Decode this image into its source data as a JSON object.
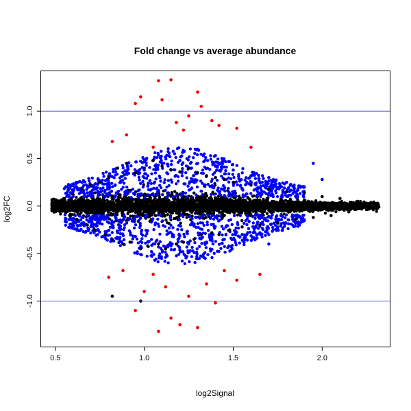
{
  "chart_data": {
    "type": "scatter",
    "title": "Fold change vs average abundance",
    "xlabel": "log2Signal",
    "ylabel": "log2FC",
    "xlim": [
      0.42,
      2.38
    ],
    "ylim": [
      -1.48,
      1.42
    ],
    "x_ticks": [
      0.5,
      1.0,
      1.5,
      2.0
    ],
    "x_tick_labels": [
      "0.5",
      "1.0",
      "1.5",
      "2.0"
    ],
    "y_ticks": [
      -1.0,
      -0.5,
      0.0,
      0.5,
      1.0
    ],
    "y_tick_labels": [
      "-1.0",
      "-0.5",
      "0.0",
      "0.5",
      "1.0"
    ],
    "reference_lines": [
      {
        "axis": "y",
        "value": 1.0,
        "color": "#4a4aff"
      },
      {
        "axis": "y",
        "value": -1.0,
        "color": "#4a4aff"
      }
    ],
    "series": [
      {
        "color": "#000000",
        "description": "dense band around log2FC = 0, spread narrowing toward high log2Signal",
        "points": [
          [
            0.5,
            0.02
          ],
          [
            0.52,
            -0.05
          ],
          [
            0.55,
            0.08
          ],
          [
            0.58,
            -0.1
          ],
          [
            0.6,
            0.12
          ],
          [
            0.62,
            -0.14
          ],
          [
            0.65,
            0.18
          ],
          [
            0.68,
            -0.2
          ],
          [
            0.7,
            0.22
          ],
          [
            0.72,
            -0.25
          ],
          [
            0.75,
            0.25
          ],
          [
            0.78,
            -0.3
          ],
          [
            0.8,
            0.3
          ],
          [
            0.82,
            -0.35
          ],
          [
            0.85,
            0.4
          ],
          [
            0.88,
            -0.4
          ],
          [
            0.9,
            0.45
          ],
          [
            0.92,
            -0.38
          ],
          [
            0.95,
            0.35
          ],
          [
            0.98,
            -0.45
          ],
          [
            1.0,
            0.4
          ],
          [
            1.02,
            -0.42
          ],
          [
            1.05,
            0.48
          ],
          [
            1.08,
            -0.4
          ],
          [
            1.1,
            0.42
          ],
          [
            1.12,
            -0.45
          ],
          [
            1.15,
            0.38
          ],
          [
            1.18,
            -0.4
          ],
          [
            1.2,
            0.36
          ],
          [
            1.22,
            -0.38
          ],
          [
            1.25,
            0.4
          ],
          [
            1.28,
            -0.35
          ],
          [
            1.3,
            0.35
          ],
          [
            1.32,
            -0.3
          ],
          [
            1.35,
            0.32
          ],
          [
            1.38,
            -0.28
          ],
          [
            1.4,
            0.3
          ],
          [
            1.42,
            -0.3
          ],
          [
            1.45,
            0.28
          ],
          [
            1.48,
            -0.25
          ],
          [
            1.5,
            0.25
          ],
          [
            1.55,
            -0.22
          ],
          [
            1.6,
            0.22
          ],
          [
            1.65,
            -0.2
          ],
          [
            1.7,
            0.18
          ],
          [
            1.75,
            -0.18
          ],
          [
            1.8,
            0.15
          ],
          [
            1.85,
            -0.14
          ],
          [
            1.9,
            0.14
          ],
          [
            1.95,
            -0.12
          ],
          [
            2.0,
            0.1
          ],
          [
            2.05,
            -0.1
          ],
          [
            2.1,
            0.08
          ],
          [
            2.15,
            -0.06
          ],
          [
            2.2,
            0.05
          ],
          [
            2.25,
            0.03
          ],
          [
            2.28,
            -0.02
          ],
          [
            2.3,
            0.02
          ],
          [
            0.82,
            -0.95
          ],
          [
            0.98,
            -1.0
          ]
        ]
      },
      {
        "color": "#0000ff",
        "description": "points with moderate fold change (|log2FC| roughly 0.1 to 0.5)",
        "points": [
          [
            0.6,
            0.1
          ],
          [
            0.65,
            -0.12
          ],
          [
            0.7,
            0.15
          ],
          [
            0.75,
            -0.18
          ],
          [
            0.8,
            0.25
          ],
          [
            0.85,
            -0.28
          ],
          [
            0.9,
            0.35
          ],
          [
            0.95,
            -0.32
          ],
          [
            1.0,
            0.38
          ],
          [
            1.05,
            -0.4
          ],
          [
            1.1,
            0.45
          ],
          [
            1.15,
            -0.42
          ],
          [
            1.2,
            0.48
          ],
          [
            1.25,
            -0.4
          ],
          [
            1.3,
            0.45
          ],
          [
            1.35,
            -0.38
          ],
          [
            1.4,
            0.42
          ],
          [
            1.45,
            -0.35
          ],
          [
            1.5,
            0.38
          ],
          [
            1.55,
            -0.3
          ],
          [
            1.6,
            0.32
          ],
          [
            1.65,
            -0.28
          ],
          [
            1.7,
            0.3
          ],
          [
            1.75,
            -0.22
          ],
          [
            1.8,
            0.25
          ],
          [
            1.85,
            -0.18
          ],
          [
            1.9,
            0.2
          ],
          [
            1.95,
            0.45
          ],
          [
            2.0,
            0.28
          ],
          [
            1.7,
            -0.4
          ]
        ]
      },
      {
        "color": "#ee0000",
        "description": "points with large fold change (|log2FC| above about 0.5)",
        "points": [
          [
            0.82,
            0.68
          ],
          [
            0.9,
            0.75
          ],
          [
            0.95,
            1.08
          ],
          [
            0.98,
            1.15
          ],
          [
            1.05,
            0.62
          ],
          [
            1.08,
            1.32
          ],
          [
            1.1,
            1.12
          ],
          [
            1.15,
            1.33
          ],
          [
            1.18,
            0.88
          ],
          [
            1.22,
            0.8
          ],
          [
            1.25,
            0.95
          ],
          [
            1.3,
            1.2
          ],
          [
            1.32,
            1.05
          ],
          [
            1.38,
            0.9
          ],
          [
            1.42,
            0.85
          ],
          [
            1.52,
            0.82
          ],
          [
            1.6,
            0.62
          ],
          [
            0.8,
            -0.75
          ],
          [
            0.88,
            -0.68
          ],
          [
            0.95,
            -1.1
          ],
          [
            1.0,
            -0.9
          ],
          [
            1.05,
            -0.72
          ],
          [
            1.08,
            -1.32
          ],
          [
            1.12,
            -0.85
          ],
          [
            1.15,
            -1.18
          ],
          [
            1.2,
            -1.25
          ],
          [
            1.25,
            -0.95
          ],
          [
            1.3,
            -1.28
          ],
          [
            1.35,
            -0.82
          ],
          [
            1.4,
            -1.02
          ],
          [
            1.45,
            -0.68
          ],
          [
            1.52,
            -0.78
          ],
          [
            1.65,
            -0.72
          ]
        ]
      }
    ]
  }
}
